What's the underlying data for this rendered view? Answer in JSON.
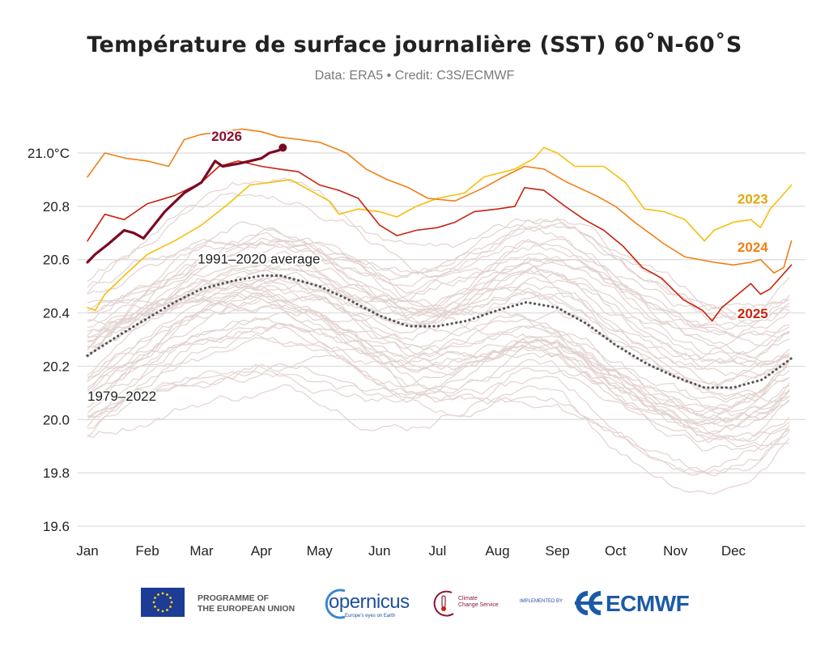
{
  "chart_data": {
    "type": "line",
    "title": "Température de surface journalière (SST) 60˚N-60˚S",
    "subtitle": "Data: ERA5 • Credit: C3S/ECMWF",
    "xlabel": "",
    "ylabel": "",
    "ylim": [
      19.6,
      21.0
    ],
    "y_ticks": [
      {
        "value": 21.0,
        "label": "21.0°C"
      },
      {
        "value": 20.8,
        "label": "20.8"
      },
      {
        "value": 20.6,
        "label": "20.6"
      },
      {
        "value": 20.4,
        "label": "20.4"
      },
      {
        "value": 20.2,
        "label": "20.2"
      },
      {
        "value": 20.0,
        "label": "20.0"
      },
      {
        "value": 19.8,
        "label": "19.8"
      },
      {
        "value": 19.6,
        "label": "19.6"
      }
    ],
    "x_unit": "day_of_year",
    "xlim": [
      0,
      365
    ],
    "x_ticks": [
      {
        "day": 0,
        "label": "Jan"
      },
      {
        "day": 31,
        "label": "Feb"
      },
      {
        "day": 59,
        "label": "Mar"
      },
      {
        "day": 90,
        "label": "Apr"
      },
      {
        "day": 120,
        "label": "May"
      },
      {
        "day": 151,
        "label": "Jun"
      },
      {
        "day": 181,
        "label": "Jul"
      },
      {
        "day": 212,
        "label": "Aug"
      },
      {
        "day": 243,
        "label": "Sep"
      },
      {
        "day": 273,
        "label": "Oct"
      },
      {
        "day": 304,
        "label": "Nov"
      },
      {
        "day": 334,
        "label": "Dec"
      }
    ],
    "grid": true,
    "series": [
      {
        "name": "1991–2020 average",
        "color": "#555555",
        "style": "dotted",
        "label": "1991–2020 average",
        "x": [
          0,
          15,
          31,
          45,
          59,
          75,
          90,
          100,
          120,
          135,
          151,
          166,
          181,
          196,
          212,
          227,
          243,
          258,
          273,
          289,
          304,
          319,
          334,
          349,
          364
        ],
        "y": [
          20.24,
          20.31,
          20.38,
          20.44,
          20.49,
          20.52,
          20.54,
          20.54,
          20.5,
          20.45,
          20.39,
          20.35,
          20.35,
          20.37,
          20.41,
          20.44,
          20.42,
          20.36,
          20.28,
          20.21,
          20.16,
          20.12,
          20.12,
          20.15,
          20.23
        ]
      },
      {
        "name": "2023",
        "color": "#f5bf0f",
        "label": "2023",
        "label_color": "#e0a80a",
        "x": [
          0,
          4,
          9,
          19,
          31,
          45,
          59,
          73,
          84,
          95,
          105,
          115,
          125,
          130,
          140,
          151,
          160,
          170,
          181,
          195,
          205,
          221,
          231,
          236,
          243,
          252,
          267,
          278,
          288,
          298,
          309,
          319,
          324,
          334,
          343,
          348,
          353,
          358,
          364
        ],
        "y": [
          20.42,
          20.41,
          20.47,
          20.54,
          20.62,
          20.67,
          20.73,
          20.81,
          20.88,
          20.89,
          20.9,
          20.86,
          20.82,
          20.77,
          20.79,
          20.78,
          20.76,
          20.8,
          20.83,
          20.85,
          20.91,
          20.94,
          20.98,
          21.02,
          21.0,
          20.95,
          20.95,
          20.89,
          20.79,
          20.78,
          20.75,
          20.67,
          20.71,
          20.74,
          20.75,
          20.72,
          20.79,
          20.83,
          20.88
        ]
      },
      {
        "name": "2024",
        "color": "#f07f14",
        "label": "2024",
        "label_color": "#f07f14",
        "x": [
          0,
          9,
          20,
          31,
          42,
          50,
          59,
          70,
          80,
          90,
          99,
          110,
          120,
          134,
          144,
          155,
          166,
          176,
          190,
          205,
          215,
          226,
          236,
          248,
          263,
          273,
          283,
          298,
          309,
          324,
          334,
          343,
          348,
          355,
          360,
          364
        ],
        "y": [
          20.91,
          21.0,
          20.98,
          20.97,
          20.95,
          21.05,
          21.07,
          21.08,
          21.09,
          21.08,
          21.06,
          21.05,
          21.04,
          21.0,
          20.94,
          20.9,
          20.87,
          20.83,
          20.82,
          20.87,
          20.91,
          20.95,
          20.94,
          20.89,
          20.84,
          20.8,
          20.74,
          20.66,
          20.61,
          20.59,
          20.58,
          20.59,
          20.6,
          20.55,
          20.57,
          20.67
        ]
      },
      {
        "name": "2025",
        "color": "#c8230f",
        "label": "2025",
        "label_color": "#c8230f",
        "x": [
          0,
          9,
          19,
          31,
          45,
          59,
          68,
          78,
          90,
          99,
          109,
          120,
          130,
          140,
          151,
          160,
          170,
          181,
          190,
          200,
          212,
          221,
          226,
          236,
          247,
          257,
          267,
          277,
          287,
          297,
          308,
          318,
          323,
          328,
          338,
          343,
          348,
          353,
          364
        ],
        "y": [
          20.67,
          20.77,
          20.75,
          20.81,
          20.84,
          20.89,
          20.95,
          20.97,
          20.95,
          20.94,
          20.93,
          20.88,
          20.86,
          20.83,
          20.73,
          20.69,
          20.71,
          20.72,
          20.74,
          20.78,
          20.79,
          20.8,
          20.87,
          20.86,
          20.8,
          20.75,
          20.71,
          20.65,
          20.57,
          20.53,
          20.45,
          20.41,
          20.37,
          20.42,
          20.48,
          20.51,
          20.47,
          20.49,
          20.58
        ]
      },
      {
        "name": "2026",
        "color": "#7b0a24",
        "label": "2026",
        "label_color": "#8b0e2c",
        "end_marker": true,
        "x": [
          0,
          4,
          11,
          19,
          24,
          29,
          40,
          50,
          59,
          66,
          70,
          78,
          84,
          90,
          94,
          99,
          101
        ],
        "y": [
          20.59,
          20.62,
          20.66,
          20.71,
          20.7,
          20.68,
          20.78,
          20.85,
          20.89,
          20.97,
          20.95,
          20.96,
          20.97,
          20.98,
          21.0,
          21.01,
          21.02
        ]
      }
    ],
    "background_series": {
      "name": "1979–2022",
      "label": "1979–2022",
      "color": "#e3d3d0",
      "label_color": "#c9b6b3",
      "years": [
        1979,
        1980,
        1981,
        1982,
        1983,
        1984,
        1985,
        1986,
        1987,
        1988,
        1989,
        1990,
        1991,
        1992,
        1993,
        1994,
        1995,
        1996,
        1997,
        1998,
        1999,
        2000,
        2001,
        2002,
        2003,
        2004,
        2005,
        2006,
        2007,
        2008,
        2009,
        2010,
        2011,
        2012,
        2013,
        2014,
        2015,
        2016,
        2017,
        2018,
        2019,
        2020,
        2021,
        2022
      ],
      "mean_anomaly": [
        -0.3,
        -0.22,
        -0.26,
        -0.24,
        -0.12,
        -0.28,
        -0.3,
        -0.22,
        -0.1,
        -0.14,
        -0.24,
        -0.14,
        -0.14,
        -0.22,
        -0.18,
        -0.12,
        -0.08,
        -0.14,
        0.02,
        0.06,
        -0.1,
        -0.08,
        0.0,
        0.04,
        0.06,
        0.04,
        0.08,
        0.06,
        0.0,
        -0.02,
        0.12,
        0.12,
        0.02,
        0.06,
        0.06,
        0.14,
        0.24,
        0.28,
        0.2,
        0.16,
        0.24,
        0.22,
        0.16,
        0.18
      ]
    }
  },
  "footer": {
    "eu_text_line1": "PROGRAMME OF",
    "eu_text_line2": "THE EUROPEAN UNION",
    "copernicus_word": "opernicus",
    "copernicus_tagline": "Europe's eyes on Earth",
    "c3s_line1": "Climate",
    "c3s_line2": "Change Service",
    "implemented_by": "IMPLEMENTED BY",
    "ecmwf": "ECMWF"
  }
}
